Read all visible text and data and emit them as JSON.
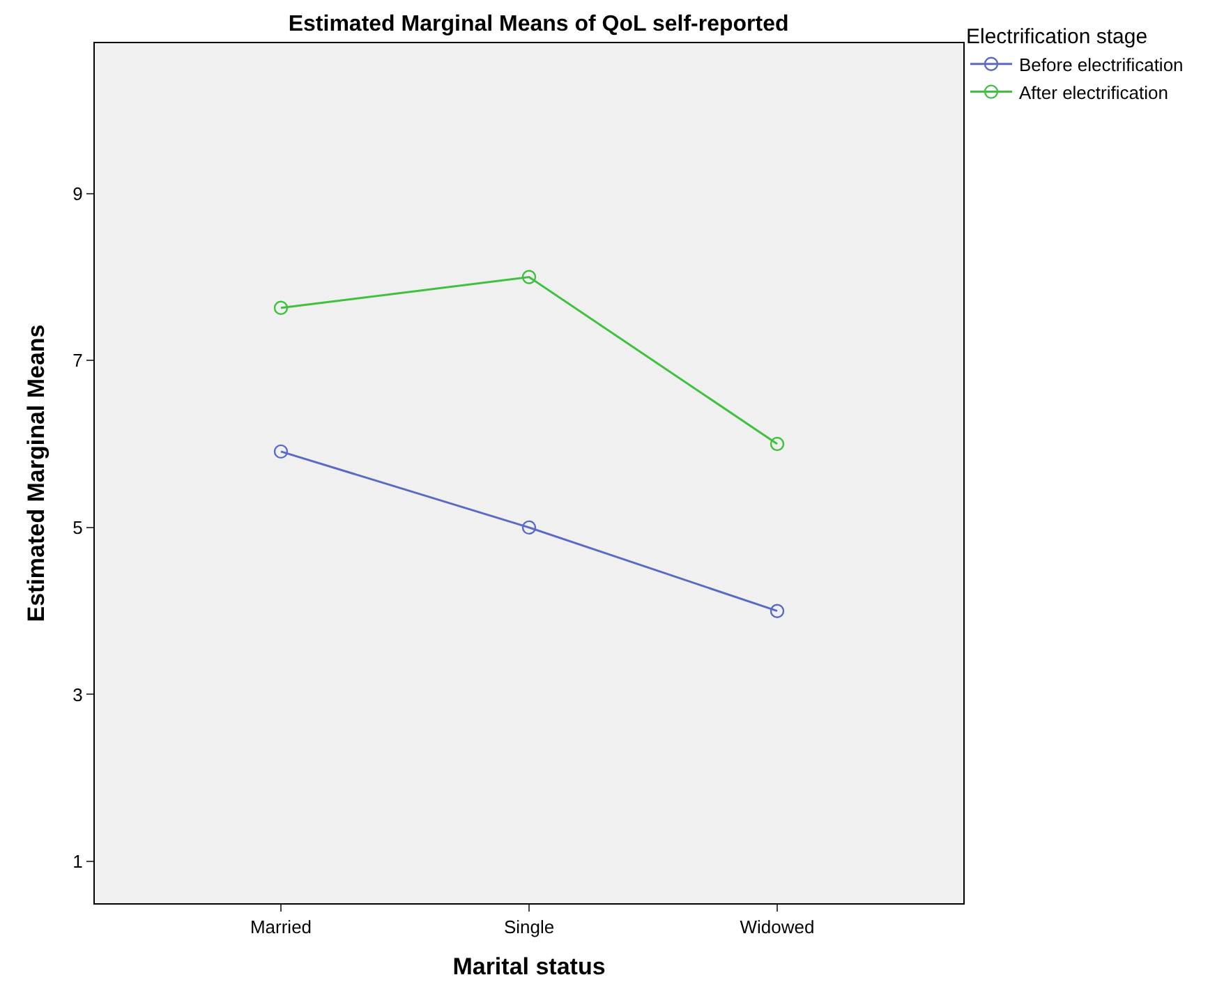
{
  "chart_data": {
    "type": "line",
    "title": "Estimated Marginal Means of QoL self-reported",
    "xlabel": "Marital status",
    "ylabel": "Estimated Marginal Means",
    "legend_title": "Electrification stage",
    "categories": [
      "Married",
      "Single",
      "Widowed"
    ],
    "series": [
      {
        "name": "Before electrification",
        "color": "#5a6ac4",
        "values": [
          5.91,
          5.0,
          4.0
        ]
      },
      {
        "name": "After electrification",
        "color": "#3fc03f",
        "values": [
          7.63,
          8.0,
          6.0
        ]
      }
    ],
    "ylim": [
      0.5,
      10.8
    ],
    "yticks": [
      1,
      3,
      5,
      7,
      9
    ],
    "grid": false,
    "legend": "top right",
    "marker": "circle",
    "line_style": "solid"
  }
}
